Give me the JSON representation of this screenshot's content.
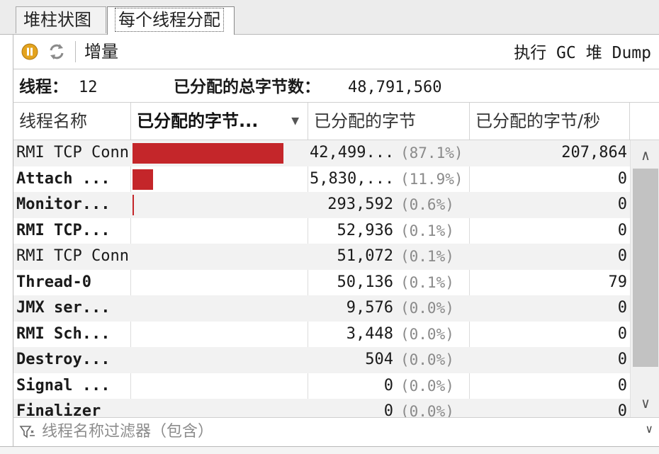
{
  "tabs": [
    {
      "label": "堆柱状图"
    },
    {
      "label": "每个线程分配"
    }
  ],
  "toolbar": {
    "pause_icon": "pause-icon",
    "refresh_icon": "refresh-icon",
    "delta_label": "增量",
    "actions": [
      "执行 GC",
      "堆 Dump"
    ]
  },
  "summary": {
    "threads_label": "线程：",
    "threads_value": "12",
    "total_label": "已分配的总字节数：",
    "total_value": "48,791,560"
  },
  "table": {
    "columns": [
      "线程名称",
      "已分配的字节...",
      "已分配的字节",
      "已分配的字节/秒"
    ],
    "sort_indicator": "▼",
    "rows": [
      {
        "name": "RMI TCP Conn",
        "bold": false,
        "bar": 0.871,
        "bytes": "42,499...",
        "pct": "(87.1%)",
        "rate": "207,864"
      },
      {
        "name": "Attach ...",
        "bold": true,
        "bar": 0.119,
        "bytes": "5,830,...",
        "pct": "(11.9%)",
        "rate": "0"
      },
      {
        "name": "Monitor...",
        "bold": true,
        "bar": 0.006,
        "bytes": "293,592",
        "pct": "(0.6%)",
        "rate": "0"
      },
      {
        "name": "RMI TCP...",
        "bold": true,
        "bar": 0.0,
        "bytes": "52,936",
        "pct": "(0.1%)",
        "rate": "0"
      },
      {
        "name": "RMI TCP Conn",
        "bold": false,
        "bar": 0.0,
        "bytes": "51,072",
        "pct": "(0.1%)",
        "rate": "0"
      },
      {
        "name": "Thread-0",
        "bold": true,
        "bar": 0.0,
        "bytes": "50,136",
        "pct": "(0.1%)",
        "rate": "79"
      },
      {
        "name": "JMX ser...",
        "bold": true,
        "bar": 0.0,
        "bytes": "9,576",
        "pct": "(0.0%)",
        "rate": "0"
      },
      {
        "name": "RMI Sch...",
        "bold": true,
        "bar": 0.0,
        "bytes": "3,448",
        "pct": "(0.0%)",
        "rate": "0"
      },
      {
        "name": "Destroy...",
        "bold": true,
        "bar": 0.0,
        "bytes": "504",
        "pct": "(0.0%)",
        "rate": "0"
      },
      {
        "name": "Signal ...",
        "bold": true,
        "bar": 0.0,
        "bytes": "0",
        "pct": "(0.0%)",
        "rate": "0"
      },
      {
        "name": "Finalizer",
        "bold": true,
        "bar": 0.0,
        "bytes": "0",
        "pct": "(0.0%)",
        "rate": "0"
      }
    ]
  },
  "filter": {
    "icon": "filter-icon",
    "placeholder": "线程名称过滤器（包含）",
    "dropdown_icon": "chevron-down-icon"
  },
  "colors": {
    "bar": "#c4262a",
    "pause_icon": "#e3a31e",
    "alt_row": "#f2f2f2"
  }
}
